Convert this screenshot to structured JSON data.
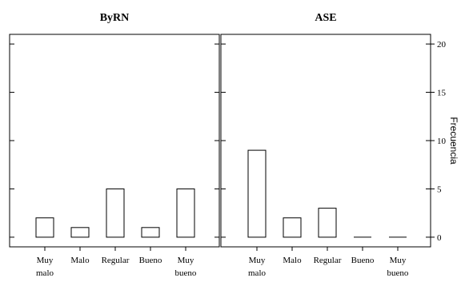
{
  "chart_data": {
    "type": "bar",
    "ylabel": "Frecuencia",
    "ylim": [
      -1,
      21
    ],
    "yticks": [
      0,
      5,
      10,
      15,
      20
    ],
    "categories": [
      [
        "Muy",
        "malo"
      ],
      [
        "Malo"
      ],
      [
        "Regular"
      ],
      [
        "Bueno"
      ],
      [
        "Muy",
        "bueno"
      ]
    ],
    "panels": [
      {
        "title": "ByRN",
        "values": [
          2,
          1,
          5,
          1,
          5
        ]
      },
      {
        "title": "ASE",
        "values": [
          9,
          2,
          3,
          0,
          0
        ]
      }
    ]
  }
}
